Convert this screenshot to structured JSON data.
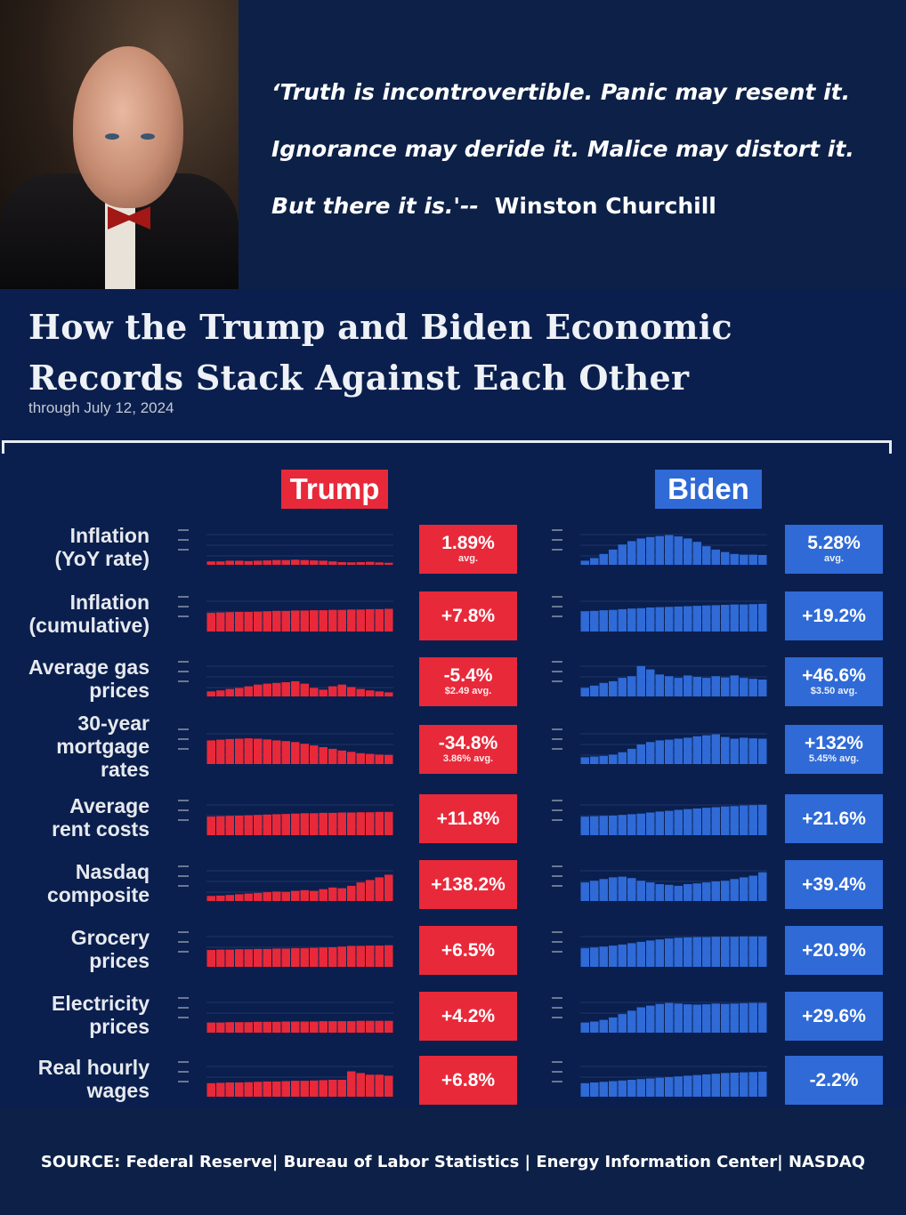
{
  "quote": {
    "line1": "‘Truth is incontrovertible. Panic may resent it.",
    "line2": "Ignorance may deride it.  Malice may distort it.",
    "line3": "But there it is.'--",
    "author": "Winston Churchill"
  },
  "source_line": "SOURCE:   Federal Reserve| Bureau of Labor Statistics | Energy Information Center| NASDAQ",
  "chart_data": {
    "type": "table",
    "title": "How the Trump and Biden Economic Records Stack Against Each Other",
    "subtitle": "through July 12, 2024",
    "columns": [
      "Trump",
      "Biden"
    ],
    "colors": {
      "trump": "#e8293a",
      "biden": "#2f6ad6"
    },
    "rows": [
      {
        "label_lines": [
          "Inflation",
          "(YoY rate)"
        ],
        "trump": "1.89%",
        "trump_sub": "avg.",
        "biden": "5.28%",
        "biden_sub": "avg.",
        "trump_trend": [
          0.1,
          0.1,
          0.12,
          0.12,
          0.11,
          0.12,
          0.13,
          0.14,
          0.14,
          0.15,
          0.14,
          0.13,
          0.12,
          0.1,
          0.08,
          0.07,
          0.08,
          0.09,
          0.07,
          0.06
        ],
        "biden_trend": [
          0.12,
          0.2,
          0.32,
          0.45,
          0.6,
          0.7,
          0.78,
          0.82,
          0.85,
          0.88,
          0.84,
          0.78,
          0.68,
          0.55,
          0.45,
          0.38,
          0.32,
          0.3,
          0.3,
          0.29
        ]
      },
      {
        "label_lines": [
          "Inflation",
          "(cumulative)"
        ],
        "trump": "+7.8%",
        "trump_sub": "",
        "biden": "+19.2%",
        "biden_sub": "",
        "trump_trend": [
          0.55,
          0.56,
          0.57,
          0.58,
          0.58,
          0.59,
          0.6,
          0.61,
          0.61,
          0.62,
          0.62,
          0.63,
          0.63,
          0.64,
          0.64,
          0.65,
          0.65,
          0.66,
          0.66,
          0.67
        ],
        "biden_trend": [
          0.6,
          0.61,
          0.63,
          0.64,
          0.66,
          0.68,
          0.69,
          0.71,
          0.72,
          0.73,
          0.74,
          0.75,
          0.76,
          0.77,
          0.78,
          0.79,
          0.8,
          0.8,
          0.81,
          0.82
        ]
      },
      {
        "label_lines": [
          "Average gas",
          "prices"
        ],
        "trump": "-5.4%",
        "trump_sub": "$2.49 avg.",
        "biden": "+46.6%",
        "biden_sub": "$3.50 avg.",
        "trump_trend": [
          0.15,
          0.18,
          0.22,
          0.25,
          0.3,
          0.35,
          0.38,
          0.4,
          0.42,
          0.45,
          0.38,
          0.25,
          0.2,
          0.3,
          0.35,
          0.28,
          0.22,
          0.18,
          0.15,
          0.12
        ],
        "biden_trend": [
          0.25,
          0.32,
          0.4,
          0.45,
          0.55,
          0.6,
          0.9,
          0.8,
          0.65,
          0.6,
          0.55,
          0.62,
          0.58,
          0.55,
          0.6,
          0.56,
          0.62,
          0.55,
          0.52,
          0.5
        ]
      },
      {
        "label_lines": [
          "30-year",
          "mortgage",
          "rates"
        ],
        "trump": "-34.8%",
        "trump_sub": "3.86% avg.",
        "biden": "+132%",
        "biden_sub": "5.45% avg.",
        "trump_trend": [
          0.7,
          0.72,
          0.74,
          0.75,
          0.76,
          0.75,
          0.73,
          0.7,
          0.68,
          0.65,
          0.6,
          0.55,
          0.5,
          0.45,
          0.4,
          0.36,
          0.32,
          0.3,
          0.28,
          0.27
        ],
        "biden_trend": [
          0.2,
          0.22,
          0.24,
          0.28,
          0.35,
          0.45,
          0.58,
          0.65,
          0.7,
          0.72,
          0.75,
          0.78,
          0.82,
          0.85,
          0.88,
          0.8,
          0.75,
          0.78,
          0.76,
          0.75
        ]
      },
      {
        "label_lines": [
          "Average",
          "rent costs"
        ],
        "trump": "+11.8%",
        "trump_sub": "",
        "biden": "+21.6%",
        "biden_sub": "",
        "trump_trend": [
          0.55,
          0.56,
          0.57,
          0.58,
          0.59,
          0.6,
          0.61,
          0.62,
          0.63,
          0.64,
          0.65,
          0.65,
          0.66,
          0.66,
          0.67,
          0.67,
          0.68,
          0.68,
          0.69,
          0.69
        ],
        "biden_trend": [
          0.55,
          0.56,
          0.57,
          0.58,
          0.6,
          0.62,
          0.64,
          0.67,
          0.7,
          0.72,
          0.75,
          0.77,
          0.79,
          0.81,
          0.83,
          0.85,
          0.86,
          0.88,
          0.89,
          0.9
        ]
      },
      {
        "label_lines": [
          "Nasdaq",
          "composite"
        ],
        "trump": "+138.2%",
        "trump_sub": "",
        "biden": "+39.4%",
        "biden_sub": "",
        "trump_trend": [
          0.15,
          0.16,
          0.18,
          0.2,
          0.22,
          0.24,
          0.26,
          0.28,
          0.27,
          0.3,
          0.32,
          0.3,
          0.35,
          0.4,
          0.38,
          0.45,
          0.55,
          0.62,
          0.7,
          0.78
        ],
        "biden_trend": [
          0.55,
          0.6,
          0.65,
          0.7,
          0.72,
          0.68,
          0.6,
          0.55,
          0.5,
          0.48,
          0.45,
          0.5,
          0.52,
          0.55,
          0.58,
          0.6,
          0.65,
          0.7,
          0.75,
          0.85
        ]
      },
      {
        "label_lines": [
          "Grocery",
          "prices"
        ],
        "trump": "+6.5%",
        "trump_sub": "",
        "biden": "+20.9%",
        "biden_sub": "",
        "trump_trend": [
          0.5,
          0.51,
          0.51,
          0.52,
          0.52,
          0.53,
          0.53,
          0.54,
          0.54,
          0.55,
          0.55,
          0.56,
          0.57,
          0.58,
          0.6,
          0.62,
          0.62,
          0.63,
          0.63,
          0.64
        ],
        "biden_trend": [
          0.55,
          0.57,
          0.6,
          0.63,
          0.66,
          0.7,
          0.74,
          0.78,
          0.81,
          0.84,
          0.86,
          0.87,
          0.88,
          0.88,
          0.89,
          0.89,
          0.89,
          0.9,
          0.9,
          0.9
        ]
      },
      {
        "label_lines": [
          "Electricity",
          "prices"
        ],
        "trump": "+4.2%",
        "trump_sub": "",
        "biden": "+29.6%",
        "biden_sub": "",
        "trump_trend": [
          0.3,
          0.3,
          0.31,
          0.31,
          0.31,
          0.32,
          0.32,
          0.32,
          0.33,
          0.33,
          0.33,
          0.33,
          0.34,
          0.34,
          0.34,
          0.34,
          0.35,
          0.35,
          0.35,
          0.35
        ],
        "biden_trend": [
          0.3,
          0.33,
          0.38,
          0.45,
          0.55,
          0.65,
          0.75,
          0.8,
          0.85,
          0.88,
          0.86,
          0.84,
          0.83,
          0.84,
          0.86,
          0.85,
          0.86,
          0.87,
          0.88,
          0.88
        ]
      },
      {
        "label_lines": [
          "Real hourly",
          "wages"
        ],
        "trump": "+6.8%",
        "trump_sub": "",
        "biden": "-2.2%",
        "biden_sub": "",
        "trump_trend": [
          0.4,
          0.41,
          0.42,
          0.42,
          0.43,
          0.44,
          0.45,
          0.45,
          0.46,
          0.47,
          0.47,
          0.48,
          0.49,
          0.5,
          0.5,
          0.75,
          0.7,
          0.65,
          0.65,
          0.62
        ],
        "biden_trend": [
          0.4,
          0.42,
          0.44,
          0.46,
          0.48,
          0.5,
          0.52,
          0.54,
          0.56,
          0.58,
          0.6,
          0.62,
          0.64,
          0.66,
          0.68,
          0.7,
          0.71,
          0.72,
          0.73,
          0.74
        ]
      }
    ]
  }
}
